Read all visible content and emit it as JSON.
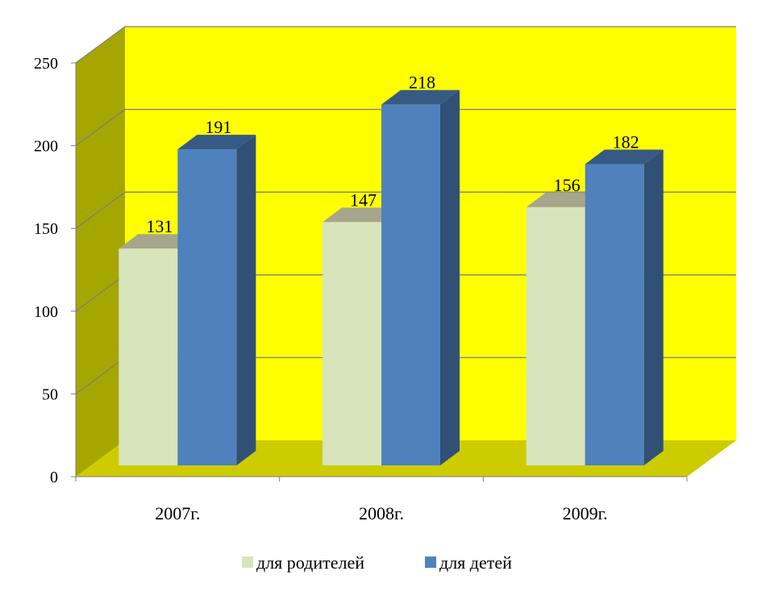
{
  "chart_data": {
    "type": "bar",
    "categories": [
      "2007г.",
      "2008г.",
      "2009г."
    ],
    "series": [
      {
        "name": "для родителей",
        "values": [
          131,
          147,
          156
        ],
        "color": "#D8E4BC"
      },
      {
        "name": "для детей",
        "values": [
          191,
          218,
          182
        ],
        "color": "#4F81BD"
      }
    ],
    "y_ticks": [
      "0",
      "50",
      "100",
      "150",
      "200",
      "250"
    ],
    "ylim": [
      0,
      250
    ],
    "grid": true,
    "legend_position": "bottom",
    "style": "3d-column",
    "colors": {
      "back_wall": "#FFFF00",
      "side_wall": "#A6A600",
      "floor": "#CCCC00",
      "gridline": "#7F7F7F"
    }
  }
}
